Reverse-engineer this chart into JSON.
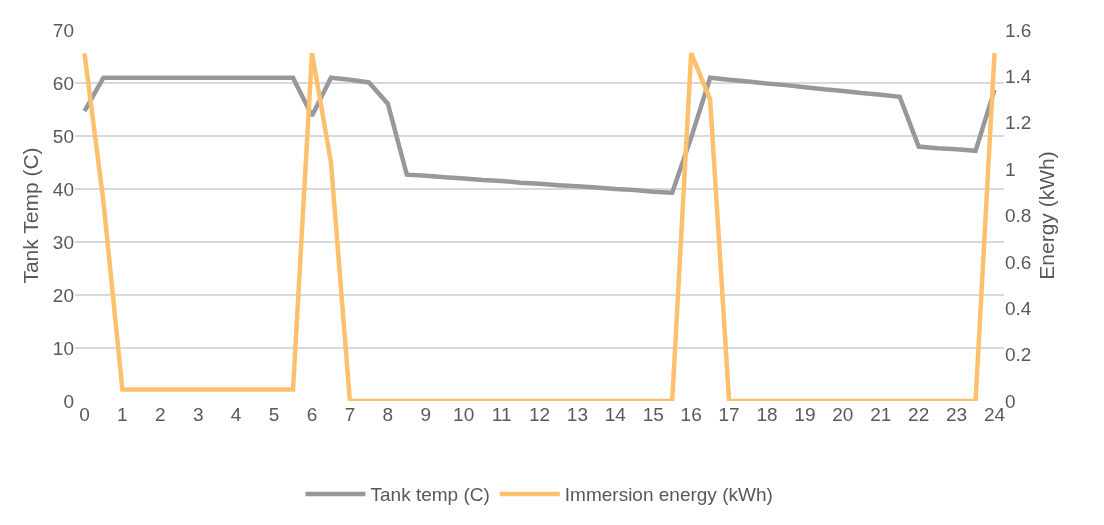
{
  "chart_data": {
    "type": "line",
    "ylabel": "Tank Temp (C)",
    "y2label": "Energy (kWh)",
    "x": [
      0,
      0.5,
      1,
      1.5,
      2,
      2.5,
      3,
      3.5,
      4,
      4.5,
      5,
      5.5,
      6,
      6.5,
      7,
      7.5,
      8,
      8.5,
      9,
      9.5,
      10,
      10.5,
      11,
      11.5,
      12,
      12.5,
      13,
      13.5,
      14,
      14.5,
      15,
      15.5,
      16,
      16.5,
      17,
      17.5,
      18,
      18.5,
      19,
      19.5,
      20,
      20.5,
      21,
      21.5,
      22,
      22.5,
      23,
      23.5,
      24
    ],
    "series": [
      {
        "name": "Tank temp (C)",
        "color": "#97989c",
        "values": [
          54.7,
          61,
          61,
          61,
          61,
          61,
          61,
          61,
          61,
          61,
          61,
          61,
          53.8,
          61,
          60.6,
          60.1,
          56.1,
          42.7,
          42.5,
          42.2,
          42,
          41.7,
          41.5,
          41.2,
          41,
          40.7,
          40.5,
          40.3,
          40,
          39.8,
          39.5,
          39.3,
          49.7,
          61,
          60.6,
          60.3,
          59.9,
          59.6,
          59.2,
          58.8,
          58.5,
          58.1,
          57.8,
          57.4,
          48,
          47.7,
          47.5,
          47.2,
          58.7
        ]
      },
      {
        "name": "Immersion energy (kWh)",
        "color": "#ffc06e",
        "axis": "y2",
        "values": [
          1.5,
          0.86,
          0.05,
          0.05,
          0.05,
          0.05,
          0.05,
          0.05,
          0.05,
          0.05,
          0.05,
          0.05,
          1.5,
          1.03,
          0,
          0,
          0,
          0,
          0,
          0,
          0,
          0,
          0,
          0,
          0,
          0,
          0,
          0,
          0,
          0,
          0,
          0,
          1.5,
          1.3,
          0,
          0,
          0,
          0,
          0,
          0,
          0,
          0,
          0,
          0,
          0,
          0,
          0,
          0,
          1.5
        ]
      }
    ],
    "xlim": [
      -0.25,
      24.25
    ],
    "xticks": [
      0,
      1,
      2,
      3,
      4,
      5,
      6,
      7,
      8,
      9,
      10,
      11,
      12,
      13,
      14,
      15,
      16,
      17,
      18,
      19,
      20,
      21,
      22,
      23,
      24
    ],
    "ylim": [
      0,
      70
    ],
    "yticks": [
      0,
      10,
      20,
      30,
      40,
      50,
      60,
      70
    ],
    "y2lim": [
      0,
      1.6
    ],
    "y2ticks": [
      0,
      {
        "value": 0.2,
        "label": "0.2"
      },
      {
        "value": 0.4,
        "label": "0.4"
      },
      {
        "value": 0.6,
        "label": "0.6"
      },
      {
        "value": 0.8,
        "label": "0.8"
      },
      1,
      {
        "value": 1.2,
        "label": "1.2"
      },
      {
        "value": 1.4,
        "label": "1.4"
      },
      {
        "value": 1.6,
        "label": "1.6"
      }
    ],
    "grid": "y",
    "legend": "bottom",
    "marker": "none",
    "line_style": "solid"
  }
}
